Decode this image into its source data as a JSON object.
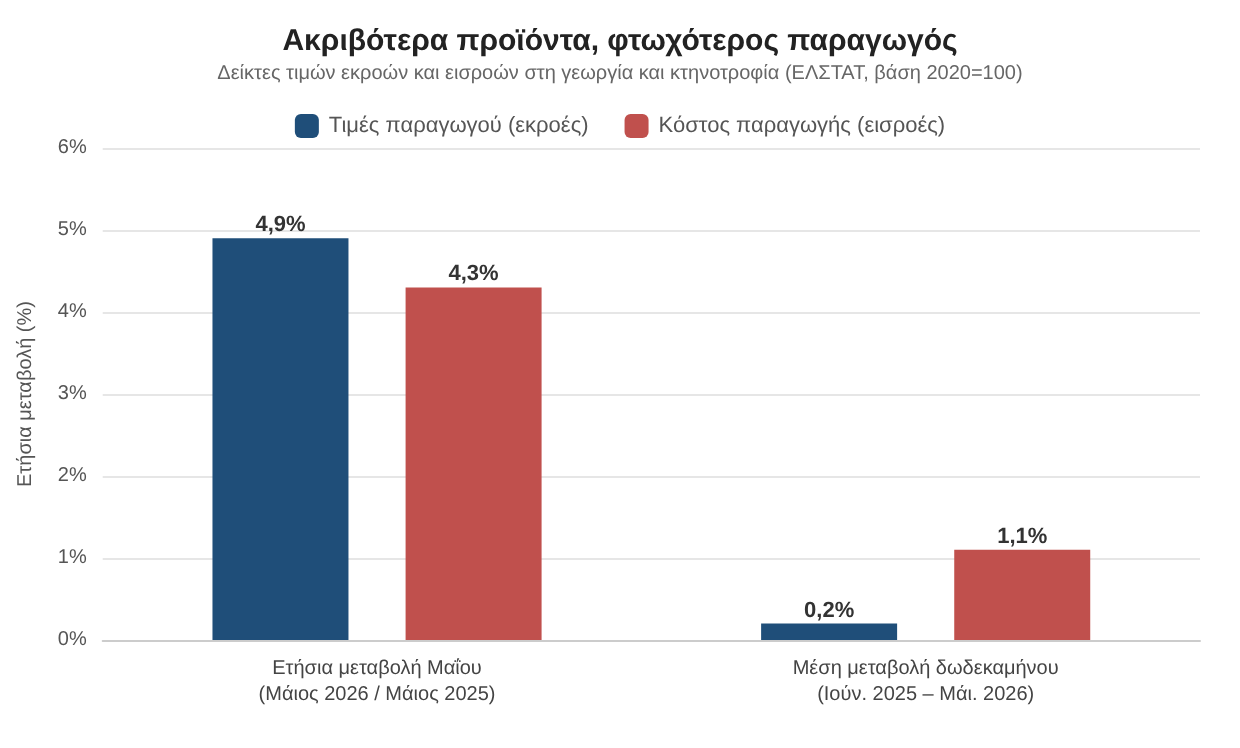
{
  "chart_data": {
    "type": "bar",
    "title": "Ακριβότερα προϊόντα, φτωχότερος παραγωγός",
    "subtitle": "Δείκτες τιμών εκροών και εισροών στη γεωργία και κτηνοτροφία (ΕΛΣΤΑΤ, βάση 2020=100)",
    "ylabel": "Ετήσια μεταβολή (%)",
    "categories": [
      "Ετήσια μεταβολή Μαΐου\n(Μάιος 2026 / Μάιος 2025)",
      "Μέση μεταβολή δωδεκαμήνου\n(Ιούν. 2025 – Μάι. 2026)"
    ],
    "series": [
      {
        "name": "Τιμές παραγωγού (εκροές)",
        "color": "#1f4e79",
        "values": [
          4.9,
          0.2
        ],
        "value_labels": [
          "4,9%",
          "0,2%"
        ]
      },
      {
        "name": "Κόστος παραγωγής (εισροές)",
        "color": "#c0504d",
        "values": [
          4.3,
          1.1
        ],
        "value_labels": [
          "4,3%",
          "1,1%"
        ]
      }
    ],
    "ylim": [
      0,
      6
    ],
    "yticks": [
      {
        "value": 0,
        "label": "0%"
      },
      {
        "value": 1,
        "label": "1%"
      },
      {
        "value": 2,
        "label": "2%"
      },
      {
        "value": 3,
        "label": "3%"
      },
      {
        "value": 4,
        "label": "4%"
      },
      {
        "value": 5,
        "label": "5%"
      },
      {
        "value": 6,
        "label": "6%"
      }
    ],
    "grid": "y",
    "legend": "top"
  }
}
